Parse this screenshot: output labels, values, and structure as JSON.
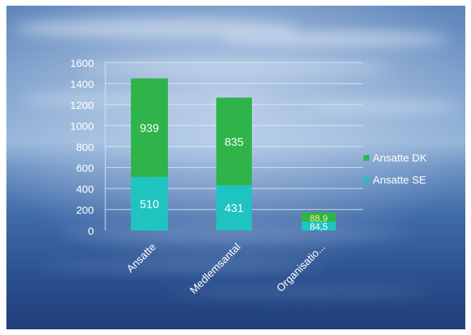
{
  "chart_data": {
    "type": "bar",
    "stacked": true,
    "categories": [
      "Ansatte",
      "Medlemsantal",
      "Organisatio..."
    ],
    "series": [
      {
        "name": "Ansatte SE",
        "values": [
          510,
          431,
          84.5
        ],
        "labels": [
          "510",
          "431",
          "84,5"
        ],
        "color": "#1fc4c0"
      },
      {
        "name": "Ansatte DK",
        "values": [
          939,
          835,
          88.9
        ],
        "labels": [
          "939",
          "835",
          "88,9"
        ],
        "color": "#2fb44a"
      }
    ],
    "y_ticks": [
      "0",
      "200",
      "400",
      "600",
      "800",
      "1000",
      "1200",
      "1400",
      "1600"
    ],
    "ylim": [
      0,
      1600
    ],
    "legend_position": "right",
    "grid": true
  }
}
